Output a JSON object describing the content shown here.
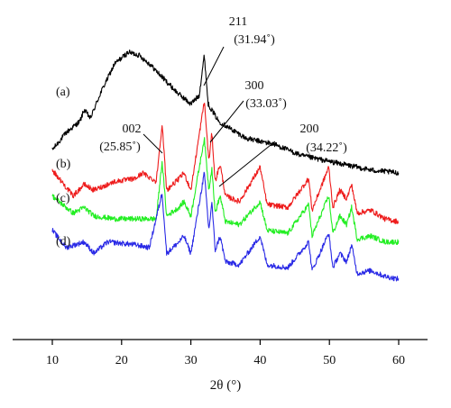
{
  "chart_data": {
    "type": "line",
    "xlabel": "2θ (°)",
    "xlim": [
      5,
      62
    ],
    "xticks": [
      10,
      20,
      30,
      40,
      50,
      60
    ],
    "ylabel": "",
    "y_ticks_shown": false,
    "grid": false,
    "legend": "none",
    "series": [
      {
        "name": "(a)",
        "color": "#000000",
        "baseline_level": 0.76,
        "x": [
          10,
          12,
          14,
          14.6,
          15.5,
          17,
          19,
          21,
          22.5,
          24,
          26,
          28,
          30,
          31.2,
          31.94,
          32.5,
          34,
          36,
          38,
          40,
          42,
          44,
          46,
          48,
          50,
          52,
          54,
          56,
          58,
          60
        ],
        "values": [
          0.66,
          0.72,
          0.76,
          0.8,
          0.77,
          0.86,
          0.96,
          1.0,
          0.99,
          0.96,
          0.91,
          0.86,
          0.82,
          0.85,
          0.99,
          0.82,
          0.76,
          0.73,
          0.7,
          0.69,
          0.68,
          0.66,
          0.64,
          0.63,
          0.62,
          0.61,
          0.6,
          0.59,
          0.585,
          0.58
        ]
      },
      {
        "name": "(b)",
        "color": "#ee1c1c",
        "baseline_level": 0.48,
        "x": [
          10,
          13,
          14.6,
          16,
          19,
          22,
          23,
          25,
          25.85,
          26.5,
          28.3,
          29,
          30,
          31.94,
          32.6,
          33.03,
          33.5,
          34.22,
          35,
          37,
          40,
          41,
          44,
          47,
          47.5,
          49.9,
          50.5,
          51.5,
          52.5,
          53.2,
          54,
          56,
          58,
          60
        ],
        "values": [
          0.59,
          0.5,
          0.54,
          0.52,
          0.55,
          0.56,
          0.58,
          0.55,
          0.75,
          0.52,
          0.56,
          0.58,
          0.52,
          0.83,
          0.62,
          0.72,
          0.55,
          0.61,
          0.5,
          0.48,
          0.6,
          0.47,
          0.46,
          0.56,
          0.45,
          0.6,
          0.46,
          0.52,
          0.49,
          0.54,
          0.44,
          0.45,
          0.42,
          0.41
        ]
      },
      {
        "name": "(c)",
        "color": "#22ee22",
        "baseline_level": 0.42,
        "x": [
          10,
          13,
          14.6,
          16,
          19,
          22,
          25,
          25.85,
          26.5,
          28.3,
          29,
          30,
          31.94,
          32.6,
          33.03,
          33.5,
          34.22,
          35,
          37,
          40,
          41,
          44,
          47,
          47.5,
          49.9,
          50.5,
          51.5,
          52.5,
          53.2,
          54,
          56,
          58,
          60
        ],
        "values": [
          0.5,
          0.44,
          0.46,
          0.43,
          0.42,
          0.42,
          0.42,
          0.62,
          0.43,
          0.46,
          0.48,
          0.43,
          0.7,
          0.52,
          0.6,
          0.44,
          0.5,
          0.41,
          0.4,
          0.48,
          0.38,
          0.37,
          0.47,
          0.36,
          0.5,
          0.37,
          0.43,
          0.4,
          0.46,
          0.35,
          0.36,
          0.34,
          0.34
        ]
      },
      {
        "name": "(d)",
        "color": "#2a2ae6",
        "baseline_level": 0.3,
        "x": [
          10,
          12,
          14.6,
          16,
          18,
          22,
          24,
          25.85,
          26.5,
          28.3,
          29,
          30,
          31.94,
          32.6,
          33.03,
          33.5,
          34.22,
          35,
          37,
          40,
          41,
          44,
          47,
          47.5,
          49.9,
          50.5,
          51.5,
          52.5,
          53.2,
          54,
          56,
          58,
          60
        ],
        "values": [
          0.38,
          0.32,
          0.34,
          0.3,
          0.34,
          0.33,
          0.32,
          0.51,
          0.3,
          0.34,
          0.36,
          0.3,
          0.58,
          0.38,
          0.48,
          0.31,
          0.36,
          0.27,
          0.26,
          0.36,
          0.26,
          0.25,
          0.34,
          0.24,
          0.37,
          0.25,
          0.3,
          0.27,
          0.33,
          0.23,
          0.24,
          0.22,
          0.21
        ]
      }
    ],
    "annotations": [
      {
        "line1": "211",
        "line2": "(31.94˚)",
        "x": 31.94
      },
      {
        "line1": "300",
        "line2": "(33.03˚)",
        "x": 33.03
      },
      {
        "line1": "200",
        "line2": "(34.22˚)",
        "x": 34.22
      },
      {
        "line1": "002",
        "line2": "(25.85˚)",
        "x": 25.85
      }
    ]
  }
}
